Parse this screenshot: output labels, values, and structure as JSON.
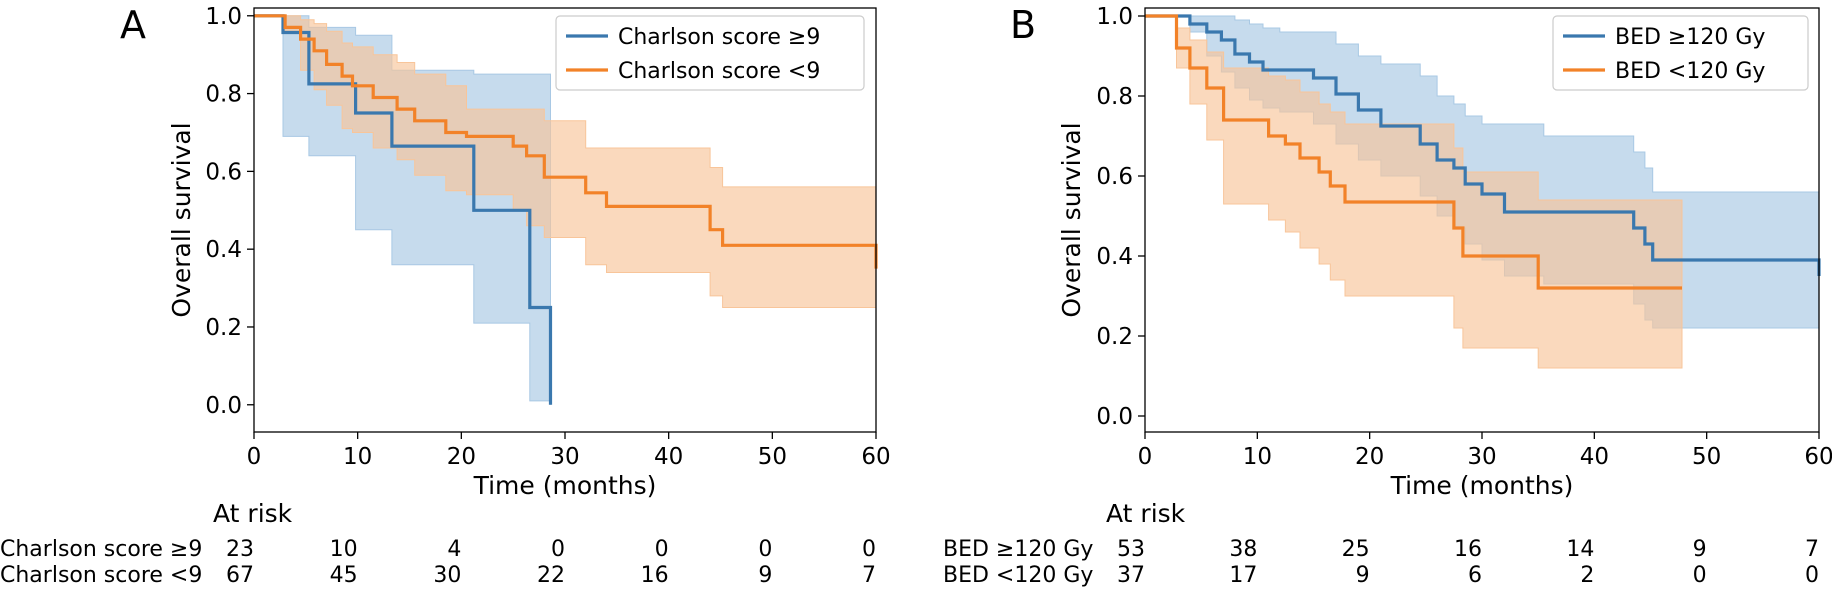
{
  "chart_data": [
    {
      "type": "line",
      "panel_label": "A",
      "xlabel": "Time (months)",
      "ylabel": "Overall survival",
      "xlim": [
        0,
        60
      ],
      "ylim": [
        -0.07,
        1.02
      ],
      "xticks": [
        0,
        10,
        20,
        30,
        40,
        50,
        60
      ],
      "yticks": [
        0.0,
        0.2,
        0.4,
        0.6,
        0.8,
        1.0
      ],
      "grid": false,
      "legend_position": "top-right",
      "series": [
        {
          "name": "Charlson score ≥9",
          "color": "#3a78ae",
          "band_color": "#a8c8e4",
          "x": [
            0,
            2.8,
            5.3,
            9.8,
            13.3,
            21.2,
            26.6,
            28.6
          ],
          "y": [
            1.0,
            0.957,
            0.825,
            0.75,
            0.665,
            0.5,
            0.25,
            0.0
          ],
          "ci_lower": [
            1.0,
            0.69,
            0.64,
            0.45,
            0.36,
            0.21,
            0.01,
            0.0
          ],
          "ci_upper": [
            1.0,
            1.0,
            0.97,
            0.95,
            0.86,
            0.85,
            0.85,
            0.0
          ]
        },
        {
          "name": "Charlson score <9",
          "color": "#f28228",
          "band_color": "#f8c59a",
          "x": [
            0,
            3.0,
            4.5,
            5.8,
            7.0,
            8.5,
            9.5,
            11.5,
            13.8,
            15.5,
            18.5,
            20.5,
            23.0,
            25.0,
            26.3,
            28.0,
            32.0,
            34.0,
            44.0,
            45.2,
            60.0
          ],
          "y": [
            1.0,
            0.97,
            0.94,
            0.91,
            0.875,
            0.845,
            0.82,
            0.79,
            0.76,
            0.73,
            0.7,
            0.69,
            0.69,
            0.665,
            0.64,
            0.585,
            0.545,
            0.51,
            0.45,
            0.41,
            0.35
          ],
          "ci_lower": [
            1.0,
            0.96,
            0.86,
            0.81,
            0.77,
            0.71,
            0.7,
            0.66,
            0.63,
            0.59,
            0.55,
            0.54,
            0.54,
            0.5,
            0.46,
            0.43,
            0.36,
            0.34,
            0.28,
            0.25,
            0.19
          ],
          "ci_upper": [
            1.0,
            1.0,
            0.99,
            0.98,
            0.96,
            0.93,
            0.92,
            0.9,
            0.88,
            0.85,
            0.82,
            0.76,
            0.76,
            0.76,
            0.76,
            0.73,
            0.66,
            0.66,
            0.61,
            0.56,
            0.56
          ]
        }
      ],
      "risk_table": {
        "title": "At risk",
        "rows": [
          {
            "label": "Charlson score ≥9",
            "values": [
              "23",
              "10",
              "4",
              "0",
              "0",
              "0",
              "0"
            ]
          },
          {
            "label": "Charlson score <9",
            "values": [
              "67",
              "45",
              "30",
              "22",
              "16",
              "9",
              "7"
            ]
          }
        ]
      }
    },
    {
      "type": "line",
      "panel_label": "B",
      "xlabel": "Time (months)",
      "ylabel": "Overall survival",
      "xlim": [
        0,
        60
      ],
      "ylim": [
        -0.04,
        1.02
      ],
      "xticks": [
        0,
        10,
        20,
        30,
        40,
        50,
        60
      ],
      "yticks": [
        0.0,
        0.2,
        0.4,
        0.6,
        0.8,
        1.0
      ],
      "grid": false,
      "legend_position": "top-right",
      "series": [
        {
          "name": "BED ≥120 Gy",
          "color": "#3a78ae",
          "band_color": "#a8c8e4",
          "x": [
            0,
            4.0,
            5.5,
            6.8,
            8.0,
            9.3,
            10.5,
            12.0,
            15.0,
            17.0,
            19.0,
            21.0,
            24.5,
            26.0,
            27.5,
            28.5,
            30.0,
            32.0,
            35.5,
            43.5,
            44.5,
            45.2,
            60.0
          ],
          "y": [
            1.0,
            0.98,
            0.96,
            0.94,
            0.905,
            0.885,
            0.865,
            0.865,
            0.845,
            0.805,
            0.765,
            0.725,
            0.68,
            0.64,
            0.62,
            0.58,
            0.555,
            0.51,
            0.51,
            0.47,
            0.43,
            0.39,
            0.35
          ],
          "ci_lower": [
            1.0,
            0.96,
            0.9,
            0.86,
            0.82,
            0.79,
            0.77,
            0.76,
            0.73,
            0.68,
            0.64,
            0.6,
            0.55,
            0.5,
            0.47,
            0.43,
            0.39,
            0.35,
            0.33,
            0.28,
            0.24,
            0.22,
            0.18
          ],
          "ci_upper": [
            1.0,
            1.0,
            1.0,
            1.0,
            0.99,
            0.98,
            0.97,
            0.96,
            0.96,
            0.93,
            0.9,
            0.88,
            0.85,
            0.8,
            0.78,
            0.75,
            0.73,
            0.73,
            0.7,
            0.66,
            0.62,
            0.56,
            0.56
          ]
        },
        {
          "name": "BED <120 Gy",
          "color": "#f28228",
          "band_color": "#f8c59a",
          "x": [
            0,
            2.8,
            4.0,
            5.5,
            7.0,
            9.0,
            11.0,
            12.5,
            13.8,
            15.5,
            16.5,
            17.8,
            20.0,
            25.0,
            27.5,
            28.3,
            30.0,
            35.0,
            47.8
          ],
          "y": [
            1.0,
            0.92,
            0.87,
            0.82,
            0.74,
            0.74,
            0.7,
            0.68,
            0.645,
            0.61,
            0.575,
            0.535,
            0.535,
            0.535,
            0.47,
            0.4,
            0.4,
            0.32,
            0.32
          ],
          "ci_lower": [
            1.0,
            0.87,
            0.78,
            0.69,
            0.53,
            0.53,
            0.49,
            0.46,
            0.42,
            0.38,
            0.34,
            0.3,
            0.3,
            0.3,
            0.22,
            0.17,
            0.17,
            0.12,
            0.12
          ],
          "ci_upper": [
            1.0,
            0.97,
            0.94,
            0.91,
            0.87,
            0.87,
            0.85,
            0.84,
            0.81,
            0.78,
            0.76,
            0.73,
            0.73,
            0.73,
            0.67,
            0.61,
            0.61,
            0.54,
            0.54
          ]
        }
      ],
      "risk_table": {
        "title": "At risk",
        "rows": [
          {
            "label": "BED ≥120 Gy",
            "values": [
              "53",
              "38",
              "25",
              "16",
              "14",
              "9",
              "7"
            ]
          },
          {
            "label": "BED <120 Gy",
            "values": [
              "37",
              "17",
              "9",
              "6",
              "2",
              "0",
              "0"
            ]
          }
        ]
      }
    }
  ]
}
